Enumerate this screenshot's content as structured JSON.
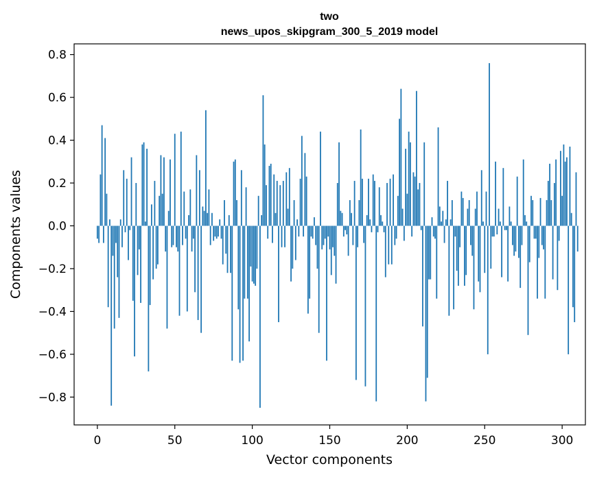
{
  "chart_data": {
    "type": "bar",
    "title_line1": "two",
    "title_line2": "news_upos_skipgram_300_5_2019 model",
    "xlabel": "Vector components",
    "ylabel": "Components values",
    "xlim": [
      -15,
      315
    ],
    "ylim": [
      -0.93,
      0.85
    ],
    "xticks": [
      0,
      50,
      100,
      150,
      200,
      250,
      300
    ],
    "xtick_labels": [
      "0",
      "50",
      "100",
      "150",
      "200",
      "250",
      "300"
    ],
    "yticks": [
      -0.8,
      -0.6,
      -0.4,
      -0.2,
      0.0,
      0.2,
      0.4,
      0.6,
      0.8
    ],
    "ytick_labels": [
      "−0.8",
      "−0.6",
      "−0.4",
      "−0.2",
      "0.0",
      "0.2",
      "0.4",
      "0.6",
      "0.8"
    ],
    "grid": false,
    "bar_color": "#1f77b4",
    "values": [
      -0.06,
      -0.08,
      0.24,
      0.47,
      -0.08,
      0.41,
      0.15,
      -0.38,
      0.03,
      -0.84,
      -0.14,
      -0.48,
      -0.08,
      -0.24,
      -0.43,
      0.03,
      -0.1,
      0.26,
      -0.03,
      0.22,
      -0.16,
      -0.02,
      0.32,
      -0.35,
      -0.61,
      0.2,
      -0.23,
      -0.11,
      -0.36,
      0.38,
      0.39,
      0.02,
      0.36,
      -0.68,
      -0.37,
      0.1,
      -0.25,
      0.21,
      -0.2,
      -0.18,
      0.14,
      0.33,
      0.15,
      0.32,
      -0.12,
      -0.48,
      0.07,
      0.31,
      -0.1,
      -0.09,
      0.43,
      -0.1,
      -0.12,
      -0.42,
      0.44,
      -0.09,
      0.16,
      -0.06,
      -0.4,
      0.05,
      0.17,
      -0.12,
      -0.06,
      -0.31,
      0.33,
      -0.44,
      0.26,
      -0.5,
      0.09,
      0.07,
      0.54,
      0.06,
      0.17,
      -0.09,
      0.06,
      -0.07,
      -0.05,
      -0.06,
      -0.05,
      0.03,
      -0.06,
      -0.18,
      0.12,
      -0.13,
      -0.22,
      0.05,
      -0.22,
      -0.63,
      0.3,
      0.31,
      0.12,
      -0.39,
      -0.64,
      0.26,
      -0.63,
      -0.34,
      0.18,
      -0.34,
      -0.54,
      -0.19,
      -0.26,
      -0.27,
      -0.28,
      -0.2,
      0.14,
      -0.85,
      0.05,
      0.61,
      0.38,
      0.19,
      -0.06,
      0.28,
      0.29,
      -0.08,
      0.24,
      0.06,
      0.21,
      -0.45,
      0.19,
      -0.1,
      0.21,
      -0.1,
      0.25,
      0.08,
      0.27,
      -0.26,
      -0.2,
      0.12,
      -0.16,
      0.03,
      -0.05,
      0.22,
      0.42,
      -0.05,
      0.34,
      0.23,
      -0.41,
      -0.34,
      -0.05,
      -0.06,
      0.04,
      -0.09,
      -0.2,
      -0.5,
      0.44,
      -0.11,
      -0.09,
      -0.06,
      -0.63,
      -0.05,
      -0.11,
      -0.23,
      -0.1,
      -0.14,
      -0.27,
      0.2,
      0.39,
      0.07,
      0.06,
      -0.05,
      -0.02,
      -0.04,
      -0.14,
      0.12,
      0.06,
      -0.09,
      0.21,
      -0.72,
      -0.1,
      0.12,
      0.45,
      0.22,
      -0.08,
      -0.75,
      0.05,
      0.22,
      0.03,
      -0.03,
      0.24,
      0.21,
      -0.82,
      -0.03,
      0.18,
      0.05,
      0.02,
      -0.03,
      -0.24,
      0.2,
      -0.18,
      0.22,
      -0.18,
      0.24,
      -0.09,
      -0.06,
      0.14,
      0.5,
      0.64,
      0.08,
      -0.07,
      0.36,
      0.15,
      0.44,
      0.39,
      -0.05,
      0.25,
      0.23,
      0.63,
      0.17,
      0.2,
      -0.02,
      -0.47,
      0.39,
      -0.82,
      -0.71,
      -0.25,
      -0.25,
      0.04,
      -0.05,
      -0.06,
      -0.34,
      0.46,
      0.09,
      0.02,
      0.07,
      -0.08,
      0.03,
      0.21,
      -0.42,
      0.03,
      0.12,
      -0.39,
      -0.05,
      -0.21,
      -0.28,
      -0.1,
      0.16,
      0.13,
      -0.28,
      -0.23,
      0.08,
      0.12,
      -0.09,
      -0.14,
      -0.39,
      0.08,
      0.16,
      -0.26,
      -0.31,
      0.26,
      0.02,
      -0.22,
      0.16,
      -0.6,
      0.76,
      -0.2,
      -0.05,
      -0.05,
      0.3,
      -0.04,
      0.08,
      0.02,
      -0.24,
      0.27,
      -0.02,
      -0.02,
      -0.26,
      0.09,
      0.02,
      -0.09,
      -0.14,
      -0.12,
      0.23,
      -0.15,
      -0.29,
      -0.09,
      0.31,
      0.05,
      0.02,
      -0.51,
      -0.17,
      0.14,
      0.12,
      -0.06,
      -0.06,
      -0.34,
      -0.15,
      0.13,
      -0.09,
      -0.11,
      -0.34,
      0.12,
      0.21,
      0.29,
      0.12,
      -0.25,
      0.2,
      0.31,
      -0.3,
      -0.07,
      0.35,
      0.14,
      0.38,
      0.3,
      0.32,
      -0.6,
      0.37,
      0.06,
      -0.38,
      -0.45,
      0.25,
      -0.12
    ]
  }
}
